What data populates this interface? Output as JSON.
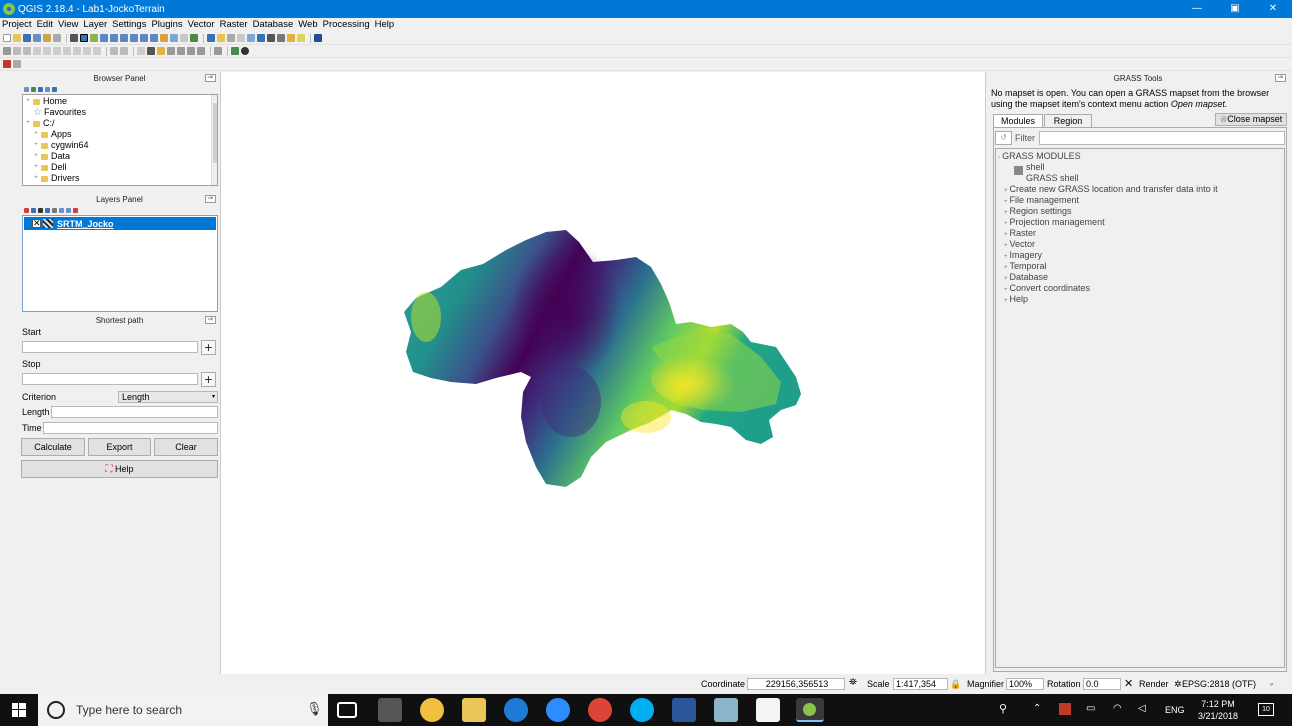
{
  "window": {
    "title": "QGIS 2.18.4 - Lab1-JockoTerrain",
    "minimize": "—",
    "maximize": "▣",
    "close": "✕"
  },
  "menu": [
    "Project",
    "Edit",
    "View",
    "Layer",
    "Settings",
    "Plugins",
    "Vector",
    "Raster",
    "Database",
    "Web",
    "Processing",
    "Help"
  ],
  "browser_panel": {
    "title": "Browser Panel",
    "items": [
      {
        "label": "Home",
        "indent": 0,
        "kind": "folder"
      },
      {
        "label": "Favourites",
        "indent": 0,
        "kind": "star"
      },
      {
        "label": "C:/",
        "indent": 0,
        "kind": "folder"
      },
      {
        "label": "Apps",
        "indent": 1,
        "kind": "folder"
      },
      {
        "label": "cygwin64",
        "indent": 1,
        "kind": "folder"
      },
      {
        "label": "Data",
        "indent": 1,
        "kind": "folder"
      },
      {
        "label": "Dell",
        "indent": 1,
        "kind": "folder"
      },
      {
        "label": "Drivers",
        "indent": 1,
        "kind": "folder"
      }
    ]
  },
  "layers_panel": {
    "title": "Layers Panel",
    "layer": "SRTM_Jocko"
  },
  "shortest_path": {
    "title": "Shortest path",
    "start_label": "Start",
    "stop_label": "Stop",
    "criterion_label": "Criterion",
    "criterion_value": "Length",
    "length_label": "Length",
    "time_label": "Time",
    "calculate": "Calculate",
    "export": "Export",
    "clear": "Clear",
    "help": "Help"
  },
  "grass": {
    "title": "GRASS Tools",
    "message_1": "No mapset is open. You can open a GRASS mapset from the browser",
    "message_2a": "using the mapset item's context menu action ",
    "message_2b": "Open mapset.",
    "tab_modules": "Modules",
    "tab_region": "Region",
    "close_mapset": "Close mapset",
    "filter_label": "Filter",
    "root": "GRASS MODULES",
    "shell": "shell",
    "shell_desc": "GRASS shell",
    "modules": [
      "Create new GRASS location and transfer data into it",
      "File management",
      "Region settings",
      "Projection management",
      "Raster",
      "Vector",
      "Imagery",
      "Temporal",
      "Database",
      "Convert coordinates",
      "Help"
    ]
  },
  "statusbar": {
    "coordinate_label": "Coordinate",
    "coordinate_value": "229156,356513",
    "scale_label": "Scale",
    "scale_value": "1:417,354",
    "magnifier_label": "Magnifier",
    "magnifier_value": "100%",
    "rotation_label": "Rotation",
    "rotation_value": "0.0",
    "render_label": "Render",
    "crs": "EPSG:2818 (OTF)"
  },
  "taskbar": {
    "search_placeholder": "Type here to search",
    "language": "ENG",
    "time": "7:12 PM",
    "date": "3/21/2018",
    "notifications": "10"
  },
  "colors": {
    "title_blue": "#0078d7",
    "selection_blue": "#0078d7",
    "viridis": [
      "#440154",
      "#3b528b",
      "#21918c",
      "#5ec962",
      "#fde725"
    ]
  }
}
